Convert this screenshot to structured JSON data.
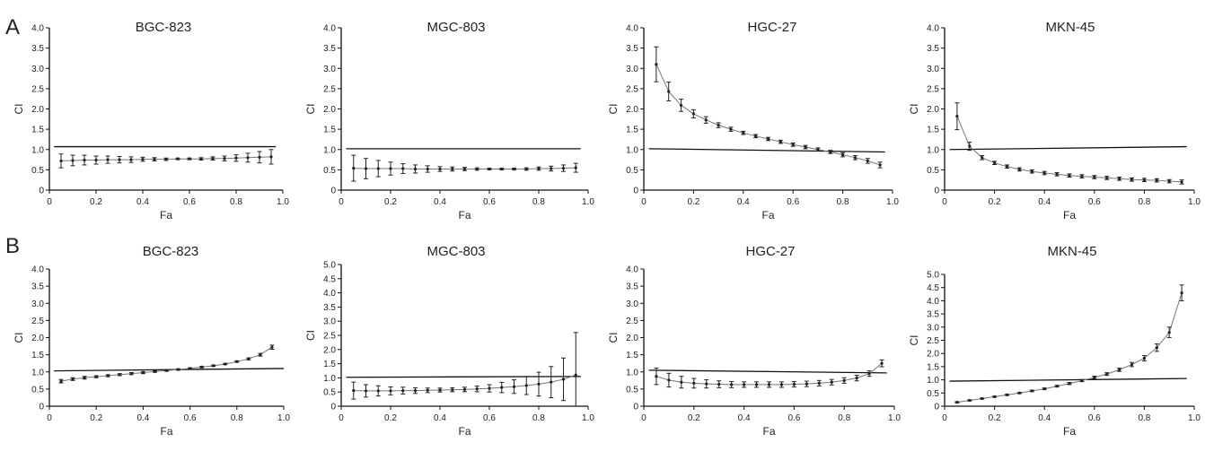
{
  "figure": {
    "panel_labels": [
      "A",
      "B"
    ]
  },
  "chart_data": [
    {
      "type": "line",
      "panel": "A",
      "title": "BGC-823",
      "xlabel": "Fa",
      "ylabel": "CI",
      "xlim": [
        0,
        1
      ],
      "ylim": [
        0,
        4
      ],
      "xticks": [
        "0",
        "0.2",
        "0.4",
        "0.6",
        "0.8",
        "1.0"
      ],
      "yticks": [
        "0",
        "0.5",
        "1.0",
        "1.5",
        "2.0",
        "2.5",
        "3.0",
        "3.5",
        "4.0"
      ],
      "reference_line": [
        [
          0.02,
          1.07
        ],
        [
          0.97,
          1.07
        ]
      ],
      "x": [
        0.05,
        0.1,
        0.15,
        0.2,
        0.25,
        0.3,
        0.35,
        0.4,
        0.45,
        0.5,
        0.55,
        0.6,
        0.65,
        0.7,
        0.75,
        0.8,
        0.85,
        0.9,
        0.95
      ],
      "values": [
        0.72,
        0.73,
        0.74,
        0.74,
        0.75,
        0.75,
        0.75,
        0.76,
        0.76,
        0.76,
        0.77,
        0.77,
        0.77,
        0.78,
        0.78,
        0.79,
        0.8,
        0.81,
        0.82
      ],
      "errors": [
        0.17,
        0.13,
        0.12,
        0.1,
        0.09,
        0.08,
        0.07,
        0.05,
        0.04,
        0.03,
        0.02,
        0.02,
        0.03,
        0.04,
        0.06,
        0.08,
        0.11,
        0.14,
        0.18
      ]
    },
    {
      "type": "line",
      "panel": "A",
      "title": "MGC-803",
      "xlabel": "Fa",
      "ylabel": "CI",
      "xlim": [
        0,
        1
      ],
      "ylim": [
        0,
        4
      ],
      "xticks": [
        "0",
        "0.2",
        "0.4",
        "0.6",
        "0.8",
        "1.0"
      ],
      "yticks": [
        "0",
        "0.5",
        "1.0",
        "1.5",
        "2.0",
        "2.5",
        "3.0",
        "3.5",
        "4.0"
      ],
      "reference_line": [
        [
          0.02,
          1.02
        ],
        [
          0.97,
          1.02
        ]
      ],
      "x": [
        0.05,
        0.1,
        0.15,
        0.2,
        0.25,
        0.3,
        0.35,
        0.4,
        0.45,
        0.5,
        0.55,
        0.6,
        0.65,
        0.7,
        0.75,
        0.8,
        0.85,
        0.9,
        0.95
      ],
      "values": [
        0.54,
        0.53,
        0.53,
        0.53,
        0.53,
        0.52,
        0.52,
        0.52,
        0.52,
        0.52,
        0.52,
        0.52,
        0.52,
        0.52,
        0.52,
        0.53,
        0.53,
        0.54,
        0.55
      ],
      "errors": [
        0.32,
        0.25,
        0.2,
        0.16,
        0.12,
        0.1,
        0.08,
        0.06,
        0.05,
        0.04,
        0.03,
        0.02,
        0.02,
        0.02,
        0.03,
        0.04,
        0.06,
        0.08,
        0.11
      ]
    },
    {
      "type": "line",
      "panel": "A",
      "title": "HGC-27",
      "xlabel": "Fa",
      "ylabel": "CI",
      "xlim": [
        0,
        1
      ],
      "ylim": [
        0,
        4
      ],
      "xticks": [
        "0",
        "0.2",
        "0.4",
        "0.6",
        "0.8",
        "1.0"
      ],
      "yticks": [
        "0",
        "0.5",
        "1.0",
        "1.5",
        "2.0",
        "2.5",
        "3.0",
        "3.5",
        "4.0"
      ],
      "reference_line": [
        [
          0.02,
          1.02
        ],
        [
          0.97,
          0.94
        ]
      ],
      "x": [
        0.05,
        0.1,
        0.15,
        0.2,
        0.25,
        0.3,
        0.35,
        0.4,
        0.45,
        0.5,
        0.55,
        0.6,
        0.65,
        0.7,
        0.75,
        0.8,
        0.85,
        0.9,
        0.95
      ],
      "values": [
        3.1,
        2.43,
        2.09,
        1.88,
        1.73,
        1.6,
        1.5,
        1.41,
        1.33,
        1.26,
        1.19,
        1.12,
        1.06,
        1.0,
        0.94,
        0.87,
        0.8,
        0.72,
        0.62
      ],
      "errors": [
        0.43,
        0.23,
        0.15,
        0.1,
        0.08,
        0.06,
        0.05,
        0.04,
        0.04,
        0.04,
        0.04,
        0.04,
        0.04,
        0.04,
        0.04,
        0.05,
        0.05,
        0.06,
        0.07
      ]
    },
    {
      "type": "line",
      "panel": "A",
      "title": "MKN-45",
      "xlabel": "Fa",
      "ylabel": "CI",
      "xlim": [
        0,
        1
      ],
      "ylim": [
        0,
        4
      ],
      "xticks": [
        "0",
        "0.2",
        "0.4",
        "0.6",
        "0.8",
        "1.0"
      ],
      "yticks": [
        "0",
        "0.5",
        "1.0",
        "1.5",
        "2.0",
        "2.5",
        "3.0",
        "3.5",
        "4.0"
      ],
      "reference_line": [
        [
          0.02,
          1.0
        ],
        [
          0.97,
          1.07
        ]
      ],
      "x": [
        0.05,
        0.1,
        0.15,
        0.2,
        0.25,
        0.3,
        0.35,
        0.4,
        0.45,
        0.5,
        0.55,
        0.6,
        0.65,
        0.7,
        0.75,
        0.8,
        0.85,
        0.9,
        0.95
      ],
      "values": [
        1.82,
        1.08,
        0.8,
        0.67,
        0.58,
        0.51,
        0.46,
        0.42,
        0.39,
        0.36,
        0.34,
        0.32,
        0.3,
        0.28,
        0.26,
        0.25,
        0.24,
        0.22,
        0.2
      ],
      "errors": [
        0.33,
        0.1,
        0.05,
        0.04,
        0.04,
        0.04,
        0.04,
        0.04,
        0.04,
        0.04,
        0.04,
        0.04,
        0.04,
        0.04,
        0.04,
        0.04,
        0.04,
        0.04,
        0.05
      ]
    },
    {
      "type": "line",
      "panel": "B",
      "title": "BGC-823",
      "xlabel": "Fa",
      "ylabel": "CI",
      "xlim": [
        0,
        1
      ],
      "ylim": [
        0,
        4
      ],
      "xticks": [
        "0",
        "0.2",
        "0.4",
        "0.6",
        "0.8",
        "1.0"
      ],
      "yticks": [
        "0",
        "0.5",
        "1.0",
        "1.5",
        "2.0",
        "2.5",
        "3.0",
        "3.5",
        "4.0"
      ],
      "reference_line": [
        [
          0.02,
          1.03
        ],
        [
          1.0,
          1.1
        ]
      ],
      "x": [
        0.05,
        0.1,
        0.15,
        0.2,
        0.25,
        0.3,
        0.35,
        0.4,
        0.45,
        0.5,
        0.55,
        0.6,
        0.65,
        0.7,
        0.75,
        0.8,
        0.85,
        0.9,
        0.95
      ],
      "values": [
        0.73,
        0.79,
        0.83,
        0.86,
        0.89,
        0.92,
        0.95,
        0.98,
        1.01,
        1.04,
        1.07,
        1.1,
        1.14,
        1.18,
        1.23,
        1.3,
        1.38,
        1.5,
        1.72
      ],
      "errors": [
        0.05,
        0.04,
        0.04,
        0.03,
        0.03,
        0.03,
        0.03,
        0.03,
        0.02,
        0.02,
        0.02,
        0.02,
        0.02,
        0.02,
        0.02,
        0.02,
        0.03,
        0.04,
        0.06
      ]
    },
    {
      "type": "line",
      "panel": "B",
      "title": "MGC-803",
      "xlabel": "Fa",
      "ylabel": "CI",
      "xlim": [
        0,
        1
      ],
      "ylim": [
        0,
        5
      ],
      "xticks": [
        "0",
        "0.2",
        "0.4",
        "0.6",
        "0.8",
        "1.0"
      ],
      "yticks": [
        "0",
        "0.5",
        "1.0",
        "1.5",
        "2.0",
        "2.5",
        "3.0",
        "3.5",
        "4.0",
        "4.5",
        "5.0"
      ],
      "reference_line": [
        [
          0.02,
          1.02
        ],
        [
          0.97,
          1.05
        ]
      ],
      "x": [
        0.05,
        0.1,
        0.15,
        0.2,
        0.25,
        0.3,
        0.35,
        0.4,
        0.45,
        0.5,
        0.55,
        0.6,
        0.65,
        0.7,
        0.75,
        0.8,
        0.85,
        0.9,
        0.95
      ],
      "values": [
        0.55,
        0.54,
        0.54,
        0.54,
        0.55,
        0.55,
        0.56,
        0.57,
        0.58,
        0.59,
        0.61,
        0.63,
        0.66,
        0.69,
        0.73,
        0.78,
        0.85,
        0.95,
        1.1
      ],
      "errors": [
        0.3,
        0.22,
        0.18,
        0.14,
        0.12,
        0.1,
        0.08,
        0.07,
        0.07,
        0.08,
        0.1,
        0.13,
        0.18,
        0.24,
        0.32,
        0.42,
        0.55,
        0.75,
        1.5
      ]
    },
    {
      "type": "line",
      "panel": "B",
      "title": "HGC-27",
      "xlabel": "Fa",
      "ylabel": "CI",
      "xlim": [
        0,
        1
      ],
      "ylim": [
        0,
        4
      ],
      "xticks": [
        "0",
        "0.2",
        "0.4",
        "0.6",
        "0.8",
        "1.0"
      ],
      "yticks": [
        "0",
        "0.5",
        "1.0",
        "1.5",
        "2.0",
        "2.5",
        "3.0",
        "3.5",
        "4.0"
      ],
      "reference_line": [
        [
          0.02,
          1.05
        ],
        [
          0.97,
          0.97
        ]
      ],
      "x": [
        0.05,
        0.1,
        0.15,
        0.2,
        0.25,
        0.3,
        0.35,
        0.4,
        0.45,
        0.5,
        0.55,
        0.6,
        0.65,
        0.7,
        0.75,
        0.8,
        0.85,
        0.9,
        0.95
      ],
      "values": [
        0.87,
        0.76,
        0.7,
        0.67,
        0.65,
        0.64,
        0.63,
        0.63,
        0.63,
        0.63,
        0.63,
        0.64,
        0.65,
        0.67,
        0.7,
        0.75,
        0.82,
        0.95,
        1.25
      ],
      "errors": [
        0.24,
        0.2,
        0.17,
        0.14,
        0.12,
        0.1,
        0.09,
        0.08,
        0.08,
        0.08,
        0.08,
        0.08,
        0.08,
        0.08,
        0.08,
        0.08,
        0.08,
        0.08,
        0.1
      ]
    },
    {
      "type": "line",
      "panel": "B",
      "title": "MKN-45",
      "xlabel": "Fa",
      "ylabel": "CI",
      "xlim": [
        0,
        1
      ],
      "ylim": [
        0,
        5
      ],
      "xticks": [
        "0",
        "0.2",
        "0.4",
        "0.6",
        "0.8",
        "1.0"
      ],
      "yticks": [
        "0",
        "0.5",
        "1.0",
        "1.5",
        "2.0",
        "2.5",
        "3.0",
        "3.5",
        "4.0",
        "4.5",
        "5.0"
      ],
      "reference_line": [
        [
          0.02,
          0.95
        ],
        [
          0.97,
          1.05
        ]
      ],
      "x": [
        0.05,
        0.1,
        0.15,
        0.2,
        0.25,
        0.3,
        0.35,
        0.4,
        0.45,
        0.5,
        0.55,
        0.6,
        0.65,
        0.7,
        0.75,
        0.8,
        0.85,
        0.9,
        0.95
      ],
      "values": [
        0.15,
        0.22,
        0.29,
        0.36,
        0.43,
        0.5,
        0.58,
        0.66,
        0.76,
        0.86,
        0.97,
        1.09,
        1.22,
        1.38,
        1.58,
        1.82,
        2.22,
        2.8,
        4.3
      ],
      "errors": [
        0.02,
        0.02,
        0.02,
        0.02,
        0.02,
        0.02,
        0.03,
        0.03,
        0.03,
        0.04,
        0.04,
        0.05,
        0.05,
        0.06,
        0.08,
        0.1,
        0.14,
        0.2,
        0.3
      ]
    }
  ]
}
